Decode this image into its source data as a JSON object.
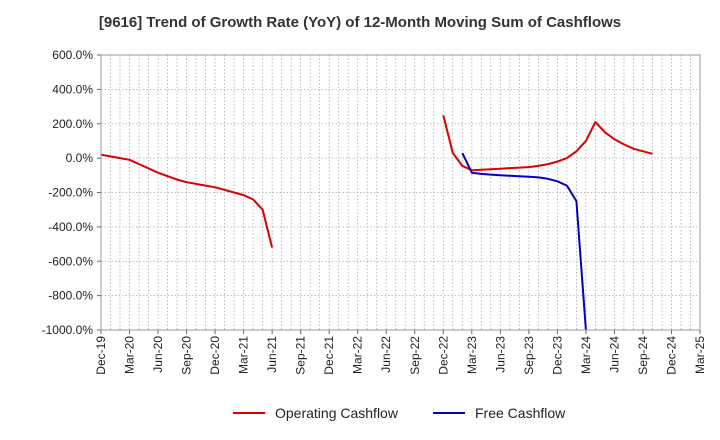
{
  "chart_data": {
    "type": "line",
    "title": "[9616]  Trend of Growth Rate (YoY) of 12-Month Moving Sum of Cashflows",
    "xlabel": "",
    "ylabel": "",
    "ylim": [
      -1000,
      600
    ],
    "yticks": [
      600,
      400,
      200,
      0,
      -200,
      -400,
      -600,
      -800,
      -1000
    ],
    "ytick_labels": [
      "600.0%",
      "400.0%",
      "200.0%",
      "0.0%",
      "-200.0%",
      "-400.0%",
      "-600.0%",
      "-800.0%",
      "-1000.0%"
    ],
    "x_categories": [
      "Dec-19",
      "Jan-20",
      "Feb-20",
      "Mar-20",
      "Apr-20",
      "May-20",
      "Jun-20",
      "Jul-20",
      "Aug-20",
      "Sep-20",
      "Oct-20",
      "Nov-20",
      "Dec-20",
      "Jan-21",
      "Feb-21",
      "Mar-21",
      "Apr-21",
      "May-21",
      "Jun-21",
      "Jul-21",
      "Aug-21",
      "Sep-21",
      "Oct-21",
      "Nov-21",
      "Dec-21",
      "Jan-22",
      "Feb-22",
      "Mar-22",
      "Apr-22",
      "May-22",
      "Jun-22",
      "Jul-22",
      "Aug-22",
      "Sep-22",
      "Oct-22",
      "Nov-22",
      "Dec-22",
      "Jan-23",
      "Feb-23",
      "Mar-23",
      "Apr-23",
      "May-23",
      "Jun-23",
      "Jul-23",
      "Aug-23",
      "Sep-23",
      "Oct-23",
      "Nov-23",
      "Dec-23",
      "Jan-24",
      "Feb-24",
      "Mar-24",
      "Apr-24",
      "May-24",
      "Jun-24",
      "Jul-24",
      "Aug-24",
      "Sep-24",
      "Oct-24",
      "Nov-24",
      "Dec-24",
      "Jan-25",
      "Feb-25",
      "Mar-25"
    ],
    "x_tick_labels": [
      "Dec-19",
      "Mar-20",
      "Jun-20",
      "Sep-20",
      "Dec-20",
      "Mar-21",
      "Jun-21",
      "Sep-21",
      "Dec-21",
      "Mar-22",
      "Jun-22",
      "Sep-22",
      "Dec-22",
      "Mar-23",
      "Jun-23",
      "Sep-23",
      "Dec-23",
      "Mar-24",
      "Jun-24",
      "Sep-24",
      "Dec-24",
      "Mar-25"
    ],
    "grid": true,
    "legend_position": "bottom",
    "series": [
      {
        "name": "Operating Cashflow",
        "color": "#dd0000",
        "values": [
          20,
          10,
          0,
          -10,
          -35,
          -60,
          -85,
          -105,
          -125,
          -140,
          -150,
          -160,
          -170,
          -185,
          -200,
          -215,
          -240,
          -300,
          -520,
          null,
          null,
          null,
          null,
          null,
          null,
          null,
          null,
          null,
          null,
          null,
          null,
          null,
          null,
          null,
          null,
          null,
          250,
          30,
          -45,
          -70,
          -68,
          -65,
          -62,
          -58,
          -55,
          -52,
          -45,
          -35,
          -20,
          0,
          40,
          100,
          210,
          150,
          110,
          80,
          55,
          40,
          25,
          null,
          null,
          null,
          null,
          null
        ]
      },
      {
        "name": "Free Cashflow",
        "color": "#0000cc",
        "values": [
          null,
          null,
          null,
          null,
          null,
          null,
          null,
          null,
          null,
          null,
          null,
          null,
          null,
          null,
          null,
          null,
          null,
          null,
          null,
          null,
          null,
          null,
          null,
          null,
          null,
          null,
          null,
          null,
          null,
          null,
          null,
          null,
          null,
          null,
          null,
          null,
          null,
          null,
          30,
          -85,
          -92,
          -96,
          -100,
          -103,
          -106,
          -108,
          -112,
          -120,
          -135,
          -160,
          -250,
          -1000,
          null,
          null,
          null,
          null,
          null,
          null,
          null,
          null,
          null,
          null,
          null,
          null
        ]
      }
    ]
  }
}
